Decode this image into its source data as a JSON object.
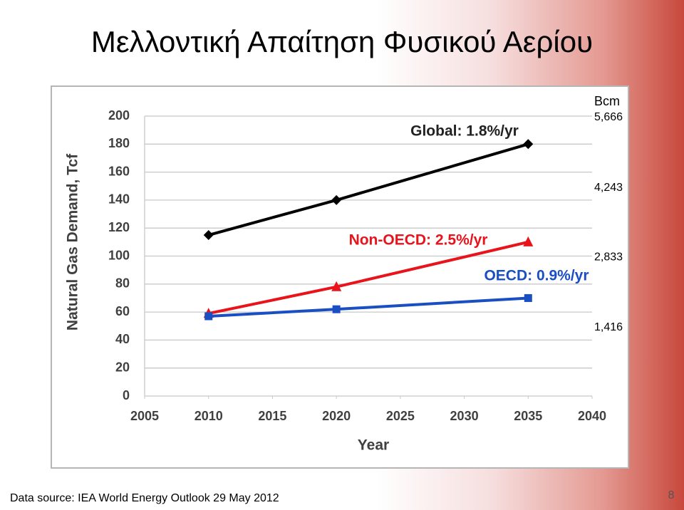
{
  "slide_title": "Μελλοντική Απαίτηση Φυσικού Αερίου",
  "chart_data": {
    "type": "line",
    "x_label": "Year",
    "y_label": "Natural Gas Demand, Tcf",
    "y2_label": "Bcm",
    "x": [
      2010,
      2020,
      2035
    ],
    "xlim": [
      2005,
      2040
    ],
    "xticks": [
      2005,
      2010,
      2015,
      2020,
      2025,
      2030,
      2035,
      2040
    ],
    "ylim": [
      0,
      200
    ],
    "yticks": [
      0,
      20,
      40,
      60,
      80,
      100,
      120,
      140,
      160,
      180,
      200
    ],
    "y2lim": [
      0,
      5666
    ],
    "y2ticks": [
      {
        "value": 1416,
        "label": "1,416"
      },
      {
        "value": 2833,
        "label": "2,833"
      },
      {
        "value": 4243,
        "label": "4,243"
      },
      {
        "value": 5666,
        "label": "5,666"
      }
    ],
    "grid": true,
    "series": [
      {
        "name": "Global: 1.8%/yr",
        "color": "#000000",
        "marker": "diamond",
        "values": [
          115,
          140,
          180
        ]
      },
      {
        "name": "Non-OECD: 2.5%/yr",
        "color": "#e8131b",
        "marker": "triangle",
        "values": [
          59,
          78,
          110
        ]
      },
      {
        "name": "OECD: 0.9%/yr",
        "color": "#1a4fc4",
        "marker": "square",
        "values": [
          57,
          62,
          70
        ]
      }
    ]
  },
  "footer": {
    "source": "Data source: IEA World Energy Outlook 29 May 2012",
    "page_number": 8
  }
}
